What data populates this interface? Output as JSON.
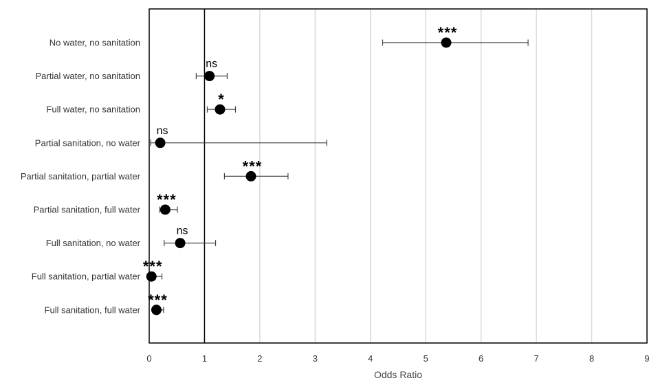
{
  "chart_data": {
    "type": "forest",
    "title": "",
    "xlabel": "Odds Ratio",
    "ylabel": "",
    "xlim": [
      0,
      9
    ],
    "xticks": [
      "0",
      "1",
      "2",
      "3",
      "4",
      "5",
      "6",
      "7",
      "8",
      "9"
    ],
    "reference_line": 1,
    "grid": "vertical",
    "colors": {
      "marker": "#000000",
      "grid": "#d9d9d9",
      "errorbar": "#404040",
      "frame": "#000000"
    },
    "categories": [
      "No water, no sanitation",
      "Partial water, no sanitation",
      "Full water, no sanitation",
      "Partial sanitation, no water",
      "Partial sanitation, partial water",
      "Partial sanitation, full water",
      "Full sanitation, no water",
      "Full sanitation, partial water",
      "Full sanitation, full water"
    ],
    "points": [
      {
        "or": 5.37,
        "lower": 4.22,
        "upper": 6.85,
        "sig": "***"
      },
      {
        "or": 1.09,
        "lower": 0.85,
        "upper": 1.41,
        "sig": "ns"
      },
      {
        "or": 1.28,
        "lower": 1.05,
        "upper": 1.56,
        "sig": "*"
      },
      {
        "or": 0.2,
        "lower": 0.01,
        "upper": 3.21,
        "sig": "ns"
      },
      {
        "or": 1.84,
        "lower": 1.36,
        "upper": 2.51,
        "sig": "***"
      },
      {
        "or": 0.29,
        "lower": 0.19,
        "upper": 0.51,
        "sig": "***"
      },
      {
        "or": 0.56,
        "lower": 0.27,
        "upper": 1.2,
        "sig": "ns"
      },
      {
        "or": 0.04,
        "lower": 0.01,
        "upper": 0.23,
        "sig": "***"
      },
      {
        "or": 0.13,
        "lower": 0.07,
        "upper": 0.26,
        "sig": "***"
      }
    ]
  }
}
